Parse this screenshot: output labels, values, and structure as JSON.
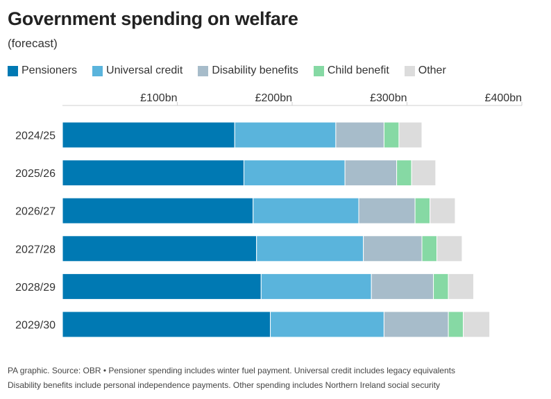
{
  "header": {
    "title": "Government spending on welfare",
    "subtitle": "(forecast)"
  },
  "colors": {
    "Pensioners": "#0079b3",
    "Universal credit": "#5ab4dc",
    "Disability benefits": "#a7bcca",
    "Child benefit": "#86d9a4",
    "Other": "#dcdcdc"
  },
  "legend": [
    {
      "label": "Pensioners",
      "color": "#0079b3"
    },
    {
      "label": "Universal credit",
      "color": "#5ab4dc"
    },
    {
      "label": "Disability benefits",
      "color": "#a7bcca"
    },
    {
      "label": "Child benefit",
      "color": "#86d9a4"
    },
    {
      "label": "Other",
      "color": "#dcdcdc"
    }
  ],
  "chart_data": {
    "type": "bar",
    "orientation": "horizontal",
    "stacked": true,
    "title": "Government spending on welfare",
    "subtitle": "(forecast)",
    "xlim": [
      0,
      400
    ],
    "x_ticks": [
      100,
      200,
      300,
      400
    ],
    "x_tick_labels": [
      "£100bn",
      "£200bn",
      "£300bn",
      "£400bn"
    ],
    "axis_position": "top",
    "categories": [
      "2024/25",
      "2025/26",
      "2026/27",
      "2027/28",
      "2028/29",
      "2029/30"
    ],
    "series": [
      {
        "name": "Pensioners",
        "values": [
          150,
          158,
          166,
          169,
          173,
          181
        ]
      },
      {
        "name": "Universal credit",
        "values": [
          88,
          88,
          92,
          93,
          96,
          99
        ]
      },
      {
        "name": "Disability benefits",
        "values": [
          42,
          45,
          49,
          51,
          54,
          56
        ]
      },
      {
        "name": "Child benefit",
        "values": [
          13,
          13,
          13,
          13,
          13,
          13
        ]
      },
      {
        "name": "Other",
        "values": [
          20,
          21,
          22,
          22,
          22,
          23
        ]
      }
    ]
  },
  "footer": {
    "line1": "PA graphic. Source: OBR • Pensioner spending includes winter fuel payment. Universal credit includes legacy equivalents",
    "line2": "Disability benefits include personal independence payments. Other spending includes Northern Ireland social security"
  }
}
